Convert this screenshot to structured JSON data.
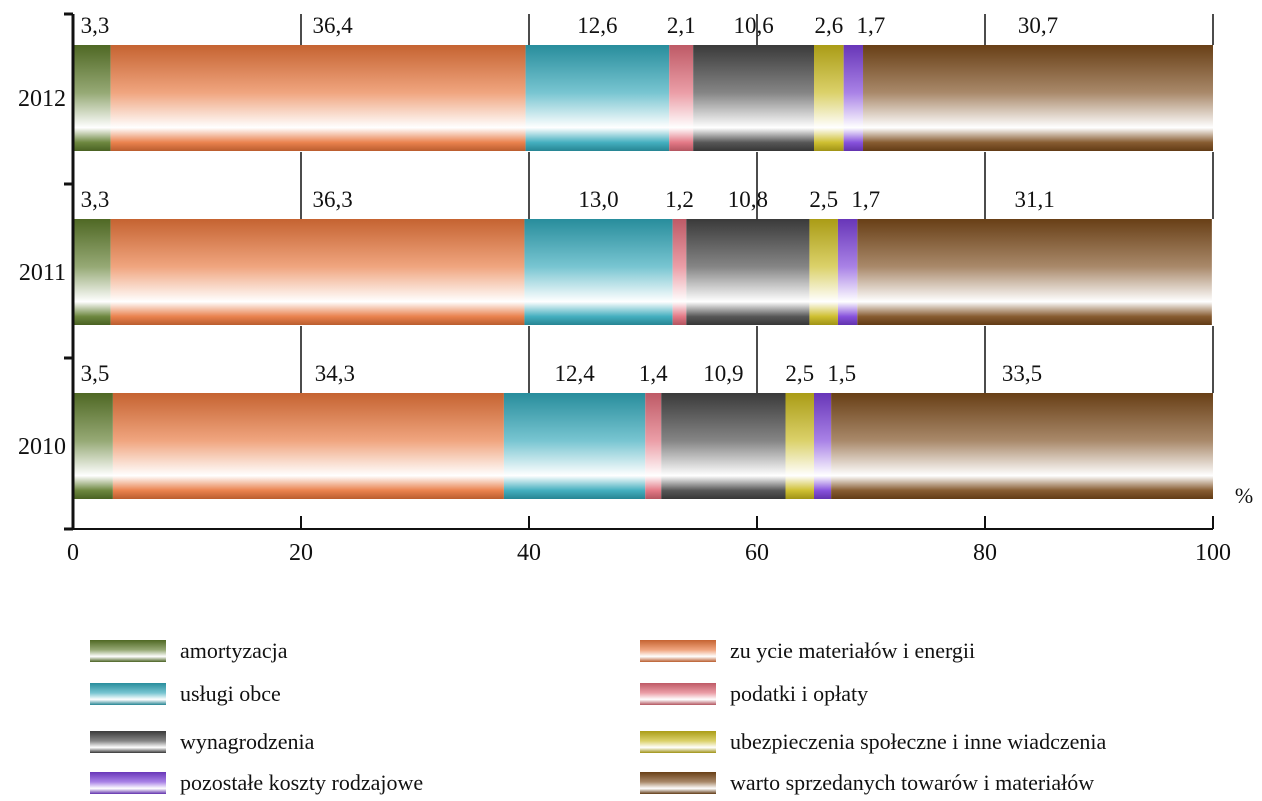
{
  "chart_data": {
    "type": "bar",
    "orientation": "horizontal",
    "stacked": true,
    "categories": [
      "2012",
      "2011",
      "2010"
    ],
    "series": [
      {
        "name": "amortyzacja",
        "values": [
          3.3,
          3.3,
          3.5
        ],
        "labels": [
          "3,3",
          "3,3",
          "3,5"
        ],
        "color": "#5d7a2a"
      },
      {
        "name": "zu  ycie materiałów i energii",
        "values": [
          36.4,
          36.3,
          34.3
        ],
        "labels": [
          "36,4",
          "36,3",
          "34,3"
        ],
        "color": "#e8743a"
      },
      {
        "name": "usługi obce",
        "values": [
          12.6,
          13.0,
          12.4
        ],
        "labels": [
          "12,6",
          "13,0",
          "12,4"
        ],
        "color": "#2fa6b8"
      },
      {
        "name": "podatki i opłaty",
        "values": [
          2.1,
          1.2,
          1.4
        ],
        "labels": [
          "2,1",
          "1,2",
          "1,4"
        ],
        "color": "#e06a78"
      },
      {
        "name": "wynagrodzenia",
        "values": [
          10.6,
          10.8,
          10.9
        ],
        "labels": [
          "10,6",
          "10,8",
          "10,9"
        ],
        "color": "#444444"
      },
      {
        "name": "ubezpieczenia społeczne i inne   wiadczenia",
        "values": [
          2.6,
          2.5,
          2.5
        ],
        "labels": [
          "2,6",
          "2,5",
          "2,5"
        ],
        "color": "#c8b81a"
      },
      {
        "name": "pozostałe koszty rodzajowe",
        "values": [
          1.7,
          1.7,
          1.5
        ],
        "labels": [
          "1,7",
          "1,7",
          "1,5"
        ],
        "color": "#7a3fd8"
      },
      {
        "name": "warto     sprzedanych towarów i materiałów",
        "values": [
          30.7,
          31.1,
          33.5
        ],
        "labels": [
          "30,7",
          "31,1",
          "33,5"
        ],
        "color": "#7a4a1a"
      }
    ],
    "xlim": [
      0,
      100
    ],
    "xticks": [
      "0",
      "20",
      "40",
      "60",
      "80",
      "100"
    ],
    "xunit": "%",
    "grid": false,
    "legend_position": "bottom"
  }
}
